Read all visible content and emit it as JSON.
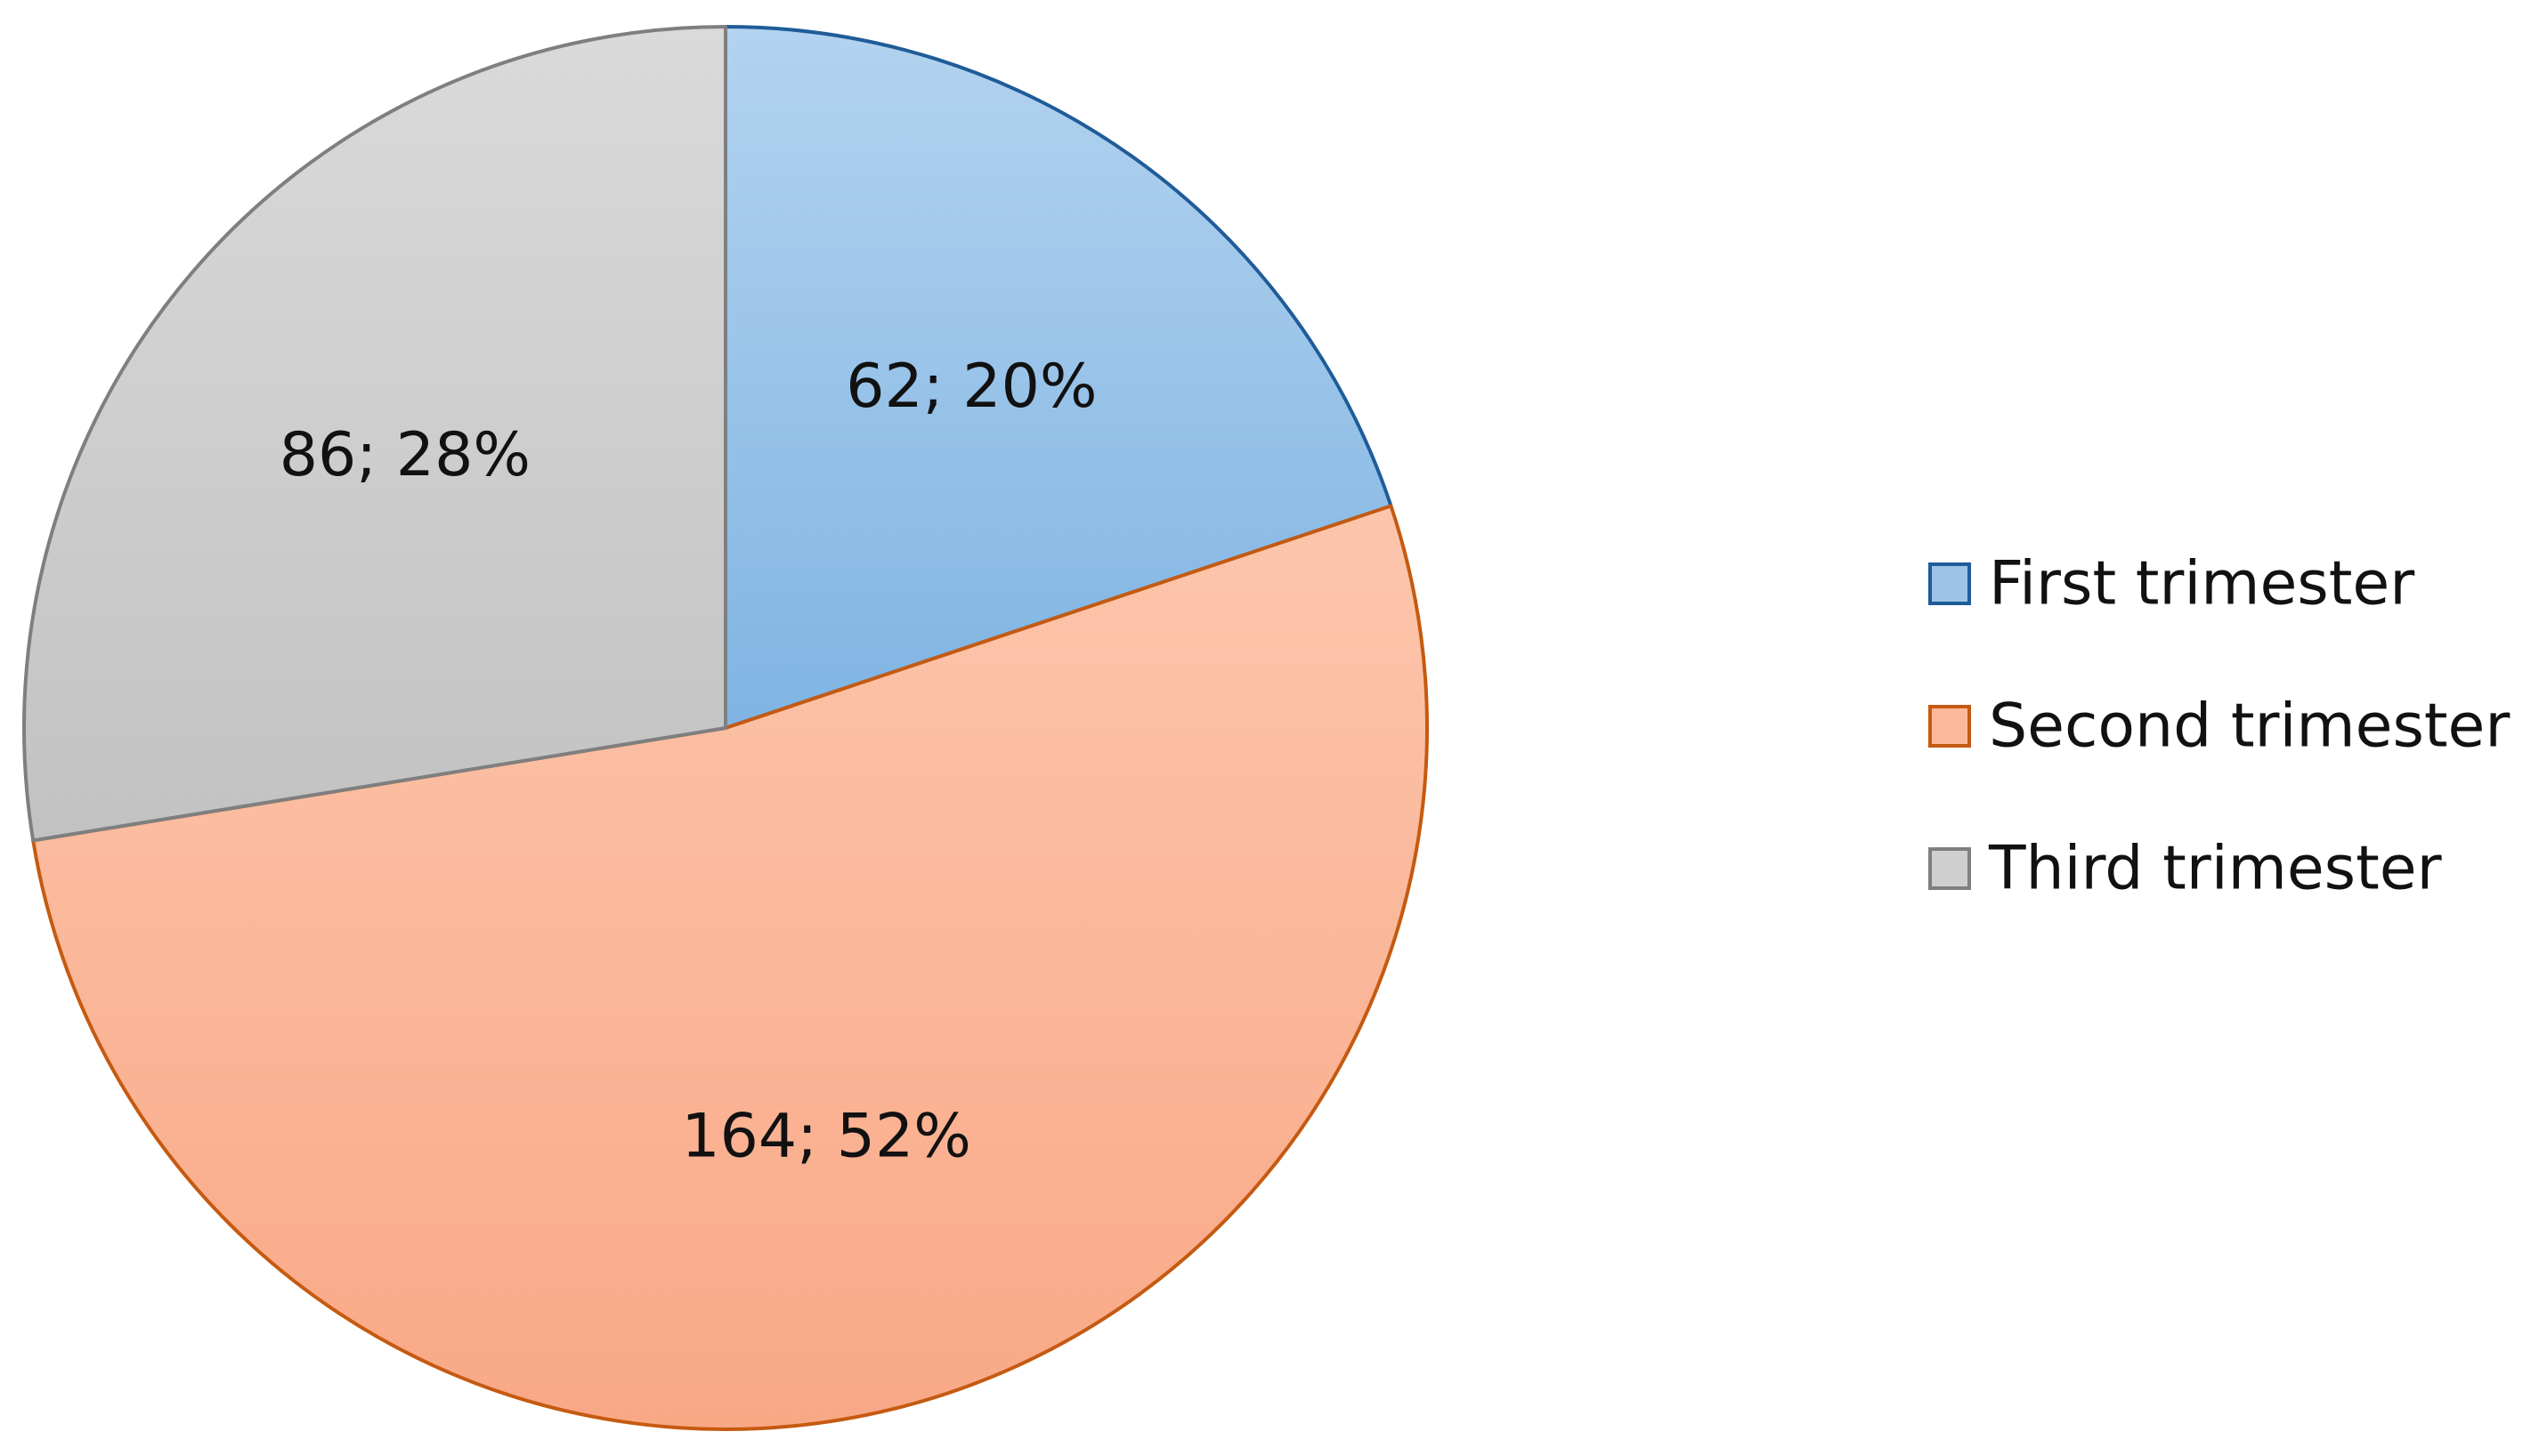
{
  "chart_data": {
    "type": "pie",
    "categories": [
      "First trimester",
      "Second trimester",
      "Third trimester"
    ],
    "values": [
      62,
      164,
      86
    ],
    "percent_labels": [
      "20%",
      "52%",
      "28%"
    ],
    "data_labels": [
      "62; 20%",
      "164; 52%",
      "86; 28%"
    ],
    "colors": {
      "fill": [
        "#9dc3e6",
        "#fbb99a",
        "#cfcfcf"
      ],
      "fill_light": [
        "#b3d3ef",
        "#fcc6ac",
        "#dadada"
      ],
      "fill_dark": [
        "#7fb4e3",
        "#f9a886",
        "#c2c2c2"
      ],
      "stroke": [
        "#1f5c99",
        "#c55a11",
        "#7f7f7f"
      ]
    },
    "start_angle": "12 o'clock",
    "direction": "clockwise",
    "legend": {
      "position": "right",
      "items": [
        "First trimester",
        "Second trimester",
        "Third trimester"
      ]
    },
    "title": ""
  }
}
